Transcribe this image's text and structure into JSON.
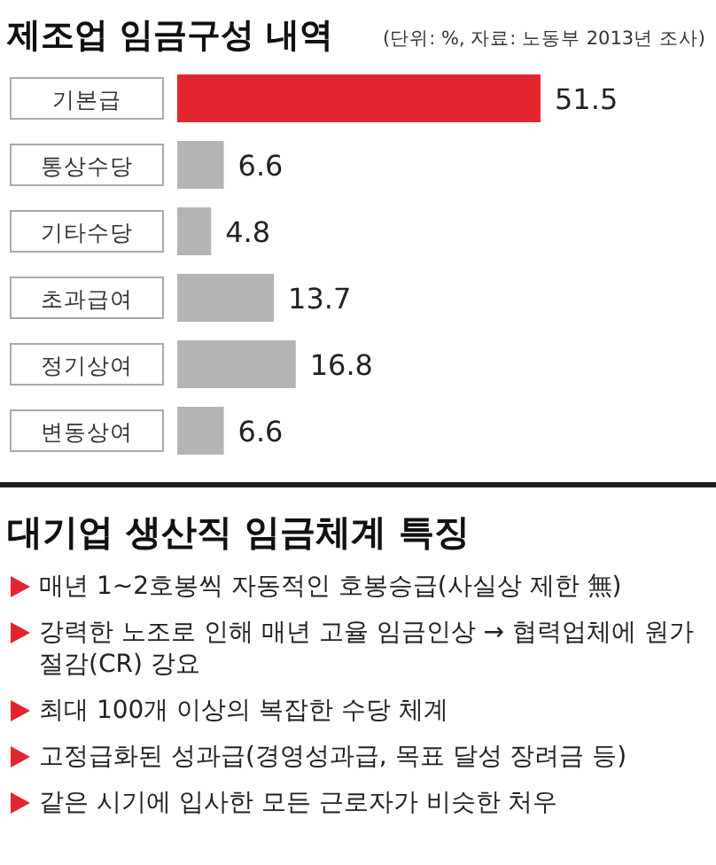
{
  "chart_data": [
    {
      "type": "bar",
      "orientation": "horizontal",
      "title": "제조업 임금구성 내역",
      "subtitle": "(단위: %, 자료: 노동부 2013년 조사)",
      "categories": [
        "기본급",
        "통상수당",
        "기타수당",
        "초과급여",
        "정기상여",
        "변동상여"
      ],
      "values": [
        51.5,
        6.6,
        4.8,
        13.7,
        16.8,
        6.6
      ],
      "colors": [
        "#e3262e",
        "#b4b4b4",
        "#b4b4b4",
        "#b4b4b4",
        "#b4b4b4",
        "#b4b4b4"
      ],
      "data_labels": true
    },
    {
      "type": "other",
      "title": "대기업 생산직 임금체계 특징",
      "annotations": [
        "매년 1~2호봉씩 자동적인 호봉승급(사실상 제한 無)",
        "강력한 노조로 인해 매년 고율 임금인상 → 협력업체에 원가절감(CR) 강요",
        "최대 100개 이상의 복잡한 수당 체계",
        "고정급화된 성과급(경영성과급, 목표 달성 장려금 등)",
        "같은 시기에 입사한 모든 근로자가 비슷한 처우"
      ]
    }
  ]
}
